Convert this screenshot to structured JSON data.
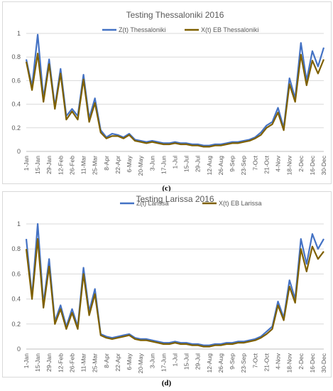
{
  "chart_data": [
    {
      "type": "line",
      "title": "Testing Thessaloniki 2016",
      "panel_label": "(c)",
      "ylim": [
        0,
        1
      ],
      "yticks": [
        0,
        0.2,
        0.4,
        0.6,
        0.8,
        1
      ],
      "grid": true,
      "legend": "top-right",
      "x_tick_labels": [
        "1-Jan",
        "15-Jan",
        "29-Jan",
        "12-Feb",
        "26-Feb",
        "11-Mar",
        "25-Mar",
        "8-Apr",
        "22-Apr",
        "6-May",
        "20-May",
        "3-Jun",
        "17-Jun",
        "1-Jul",
        "15-Jul",
        "29-Jul",
        "12-Aug",
        "26-Aug",
        "9-Sep",
        "23-Sep",
        "7-Oct",
        "21-Oct",
        "4-Nov",
        "18-Nov",
        "2-Dec",
        "16-Dec",
        "30-Dec"
      ],
      "x_dates": [
        "2016-01-01",
        "2016-01-08",
        "2016-01-15",
        "2016-01-22",
        "2016-01-29",
        "2016-02-05",
        "2016-02-12",
        "2016-02-19",
        "2016-02-26",
        "2016-03-04",
        "2016-03-11",
        "2016-03-18",
        "2016-03-25",
        "2016-04-01",
        "2016-04-08",
        "2016-04-15",
        "2016-04-22",
        "2016-04-29",
        "2016-05-06",
        "2016-05-13",
        "2016-05-20",
        "2016-05-27",
        "2016-06-03",
        "2016-06-10",
        "2016-06-17",
        "2016-06-24",
        "2016-07-01",
        "2016-07-08",
        "2016-07-15",
        "2016-07-22",
        "2016-07-29",
        "2016-08-05",
        "2016-08-12",
        "2016-08-19",
        "2016-08-26",
        "2016-09-02",
        "2016-09-09",
        "2016-09-16",
        "2016-09-23",
        "2016-09-30",
        "2016-10-07",
        "2016-10-14",
        "2016-10-21",
        "2016-10-28",
        "2016-11-04",
        "2016-11-11",
        "2016-11-18",
        "2016-11-25",
        "2016-12-02",
        "2016-12-09",
        "2016-12-16",
        "2016-12-23",
        "2016-12-30"
      ],
      "series": [
        {
          "name": "Z(t) Thessaloniki",
          "color": "#4472c4",
          "values": [
            0.78,
            0.55,
            0.99,
            0.45,
            0.78,
            0.38,
            0.7,
            0.3,
            0.36,
            0.3,
            0.65,
            0.28,
            0.45,
            0.18,
            0.12,
            0.15,
            0.14,
            0.12,
            0.15,
            0.1,
            0.09,
            0.08,
            0.09,
            0.08,
            0.07,
            0.07,
            0.08,
            0.07,
            0.07,
            0.06,
            0.06,
            0.05,
            0.05,
            0.06,
            0.06,
            0.07,
            0.08,
            0.08,
            0.09,
            0.1,
            0.12,
            0.16,
            0.22,
            0.25,
            0.37,
            0.2,
            0.62,
            0.45,
            0.92,
            0.6,
            0.85,
            0.72,
            0.88
          ]
        },
        {
          "name": "X(t) EB Thessaloniki",
          "color": "#7f6000",
          "values": [
            0.76,
            0.52,
            0.83,
            0.42,
            0.74,
            0.36,
            0.66,
            0.27,
            0.34,
            0.27,
            0.61,
            0.25,
            0.41,
            0.16,
            0.11,
            0.13,
            0.13,
            0.11,
            0.14,
            0.09,
            0.08,
            0.07,
            0.08,
            0.07,
            0.06,
            0.06,
            0.07,
            0.06,
            0.06,
            0.05,
            0.05,
            0.04,
            0.04,
            0.05,
            0.05,
            0.06,
            0.07,
            0.07,
            0.08,
            0.09,
            0.11,
            0.14,
            0.2,
            0.23,
            0.33,
            0.18,
            0.57,
            0.42,
            0.82,
            0.56,
            0.77,
            0.66,
            0.78
          ]
        }
      ]
    },
    {
      "type": "line",
      "title": "Testing Larissa 2016",
      "panel_label": "(d)",
      "ylim": [
        0,
        1
      ],
      "yticks": [
        0,
        0.2,
        0.4,
        0.6,
        0.8,
        1
      ],
      "grid": true,
      "legend": "top-right",
      "x_tick_labels": [
        "1-Jan",
        "15-Jan",
        "29-Jan",
        "12-Feb",
        "26-Feb",
        "11-Mar",
        "25-Mar",
        "8-Apr",
        "22-Apr",
        "6-May",
        "20-May",
        "3-Jun",
        "17-Jun",
        "1-Jul",
        "15-Jul",
        "29-Jul",
        "12-Aug",
        "26-Aug",
        "9-Sep",
        "23-Sep",
        "7-Oct",
        "21-Oct",
        "4-Nov",
        "18-Nov",
        "2-Dec",
        "16-Dec",
        "30-Dec"
      ],
      "x_dates": [
        "2016-01-01",
        "2016-01-08",
        "2016-01-15",
        "2016-01-22",
        "2016-01-29",
        "2016-02-05",
        "2016-02-12",
        "2016-02-19",
        "2016-02-26",
        "2016-03-04",
        "2016-03-11",
        "2016-03-18",
        "2016-03-25",
        "2016-04-01",
        "2016-04-08",
        "2016-04-15",
        "2016-04-22",
        "2016-04-29",
        "2016-05-06",
        "2016-05-13",
        "2016-05-20",
        "2016-05-27",
        "2016-06-03",
        "2016-06-10",
        "2016-06-17",
        "2016-06-24",
        "2016-07-01",
        "2016-07-08",
        "2016-07-15",
        "2016-07-22",
        "2016-07-29",
        "2016-08-05",
        "2016-08-12",
        "2016-08-19",
        "2016-08-26",
        "2016-09-02",
        "2016-09-09",
        "2016-09-16",
        "2016-09-23",
        "2016-09-30",
        "2016-10-07",
        "2016-10-14",
        "2016-10-21",
        "2016-10-28",
        "2016-11-04",
        "2016-11-11",
        "2016-11-18",
        "2016-11-25",
        "2016-12-02",
        "2016-12-09",
        "2016-12-16",
        "2016-12-23",
        "2016-12-30"
      ],
      "series": [
        {
          "name": "Z(t) Larissa",
          "color": "#4472c4",
          "values": [
            0.88,
            0.42,
            1.0,
            0.36,
            0.72,
            0.22,
            0.35,
            0.18,
            0.32,
            0.18,
            0.65,
            0.3,
            0.48,
            0.12,
            0.1,
            0.09,
            0.1,
            0.11,
            0.12,
            0.09,
            0.08,
            0.08,
            0.07,
            0.06,
            0.05,
            0.05,
            0.06,
            0.05,
            0.05,
            0.04,
            0.04,
            0.03,
            0.03,
            0.04,
            0.04,
            0.05,
            0.05,
            0.06,
            0.06,
            0.07,
            0.08,
            0.1,
            0.14,
            0.18,
            0.38,
            0.25,
            0.55,
            0.4,
            0.88,
            0.68,
            0.92,
            0.8,
            0.88
          ]
        },
        {
          "name": "X(t) EB Larissa",
          "color": "#7f6000",
          "values": [
            0.8,
            0.4,
            0.88,
            0.33,
            0.66,
            0.2,
            0.32,
            0.16,
            0.29,
            0.16,
            0.6,
            0.27,
            0.44,
            0.11,
            0.09,
            0.08,
            0.09,
            0.1,
            0.11,
            0.08,
            0.07,
            0.07,
            0.06,
            0.05,
            0.04,
            0.04,
            0.05,
            0.04,
            0.04,
            0.03,
            0.03,
            0.02,
            0.02,
            0.03,
            0.03,
            0.04,
            0.04,
            0.05,
            0.05,
            0.06,
            0.07,
            0.09,
            0.12,
            0.16,
            0.35,
            0.23,
            0.5,
            0.37,
            0.8,
            0.62,
            0.82,
            0.72,
            0.78
          ]
        }
      ]
    }
  ]
}
